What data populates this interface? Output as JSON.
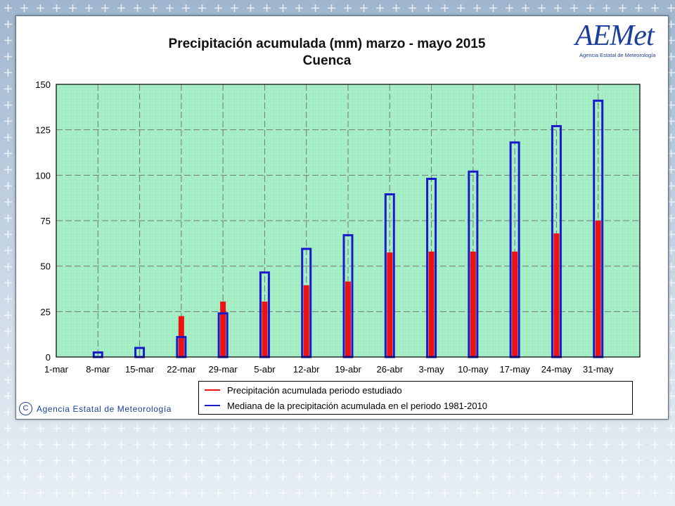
{
  "page": {
    "colors": {
      "median": "#1a1acc",
      "studied": "#ee1111",
      "plot_bg": "#a8f0c8"
    }
  },
  "logo": {
    "text": "AEMet",
    "subtitle": "Agencia Estatal de Meteorología"
  },
  "copyright": {
    "text": "Agencia Estatal de Meteorología"
  },
  "chart_data": {
    "type": "bar",
    "title": "Precipitación acumulada (mm) marzo - mayo 2015",
    "subtitle": "Cuenca",
    "xlabel": "",
    "ylabel": "",
    "ylim": [
      0,
      150
    ],
    "yticks": [
      0,
      25,
      50,
      75,
      100,
      125,
      150
    ],
    "grid": true,
    "legend_position": "bottom",
    "categories": [
      "1-mar",
      "8-mar",
      "15-mar",
      "22-mar",
      "29-mar",
      "5-abr",
      "12-abr",
      "19-abr",
      "26-abr",
      "3-may",
      "10-may",
      "17-may",
      "24-may",
      "31-may"
    ],
    "series": [
      {
        "name": "Precipitación acumulada periodo estudiado",
        "values": [
          0,
          0,
          0,
          22.5,
          30.5,
          30.5,
          39.5,
          41.5,
          57.5,
          58,
          58,
          58,
          68,
          75
        ]
      },
      {
        "name": "Mediana de la precipitación acumulada en el periodo 1981-2010",
        "values": [
          0,
          2.5,
          5,
          11,
          24,
          46.5,
          59.5,
          67,
          89.5,
          98,
          102,
          118,
          127,
          141
        ]
      }
    ]
  }
}
